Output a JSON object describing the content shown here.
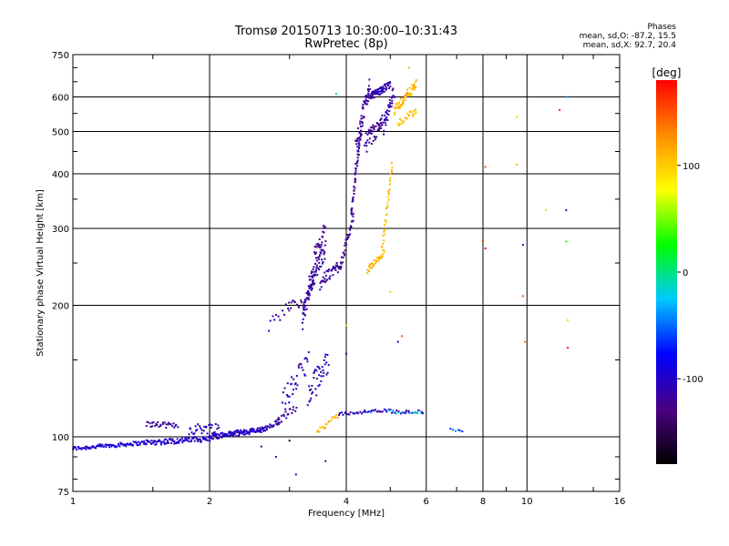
{
  "header": {
    "title_line1": "Tromsø 20150713 10:30:00–10:31:43",
    "title_line2": "RwPretec (8p)",
    "stats_heading": "Phases",
    "stats_o": "mean, sd,O: -87.2, 15.5",
    "stats_x": "mean, sd,X: 92.7, 20.4"
  },
  "chart_data": {
    "type": "scatter",
    "title": "Tromsø 20150713 10:30:00–10:31:43",
    "subtitle": "RwPretec (8p)",
    "xlabel": "Frequency [MHz]",
    "ylabel": "Stationary phase Virtual Height [km]",
    "xscale": "log",
    "yscale": "log",
    "xlim": [
      1,
      16
    ],
    "ylim": [
      75,
      750
    ],
    "xticks": [
      1,
      2,
      4,
      6,
      8,
      10,
      16
    ],
    "xtick_labels": [
      "1",
      "2",
      "4",
      "6",
      "8",
      "10",
      "16"
    ],
    "yticks": [
      75,
      100,
      200,
      300,
      400,
      500,
      600,
      750
    ],
    "ytick_labels": [
      "75",
      "100",
      "200",
      "300",
      "400",
      "500",
      "600",
      "750"
    ],
    "grid": true,
    "colorbar": {
      "label": "[deg]",
      "range": [
        -180,
        180
      ],
      "ticks": [
        100,
        0,
        -100
      ],
      "tick_labels": [
        "100",
        "0",
        "-100"
      ],
      "colormap": [
        "#000000",
        "#4b0082",
        "#0000ff",
        "#00c8ff",
        "#00ff00",
        "#ffff00",
        "#ff8c00",
        "#ff0000"
      ]
    },
    "segments": [
      {
        "x0": 1.0,
        "x1": 1.45,
        "y0": 94,
        "y1": 97,
        "n": 90,
        "jy": 1.0,
        "phase": -95,
        "jp": 10
      },
      {
        "x0": 1.45,
        "x1": 2.0,
        "y0": 97,
        "y1": 99,
        "n": 90,
        "jy": 1.5,
        "phase": -100,
        "jp": 15
      },
      {
        "x0": 1.45,
        "x1": 1.7,
        "y0": 107,
        "y1": 106,
        "n": 30,
        "jy": 1.5,
        "phase": -120,
        "jp": 10
      },
      {
        "x0": 1.8,
        "x1": 2.1,
        "y0": 104,
        "y1": 105,
        "n": 30,
        "jy": 3.0,
        "phase": -100,
        "jp": 15
      },
      {
        "x0": 2.0,
        "x1": 2.65,
        "y0": 100,
        "y1": 104,
        "n": 120,
        "jy": 1.5,
        "phase": -100,
        "jp": 15
      },
      {
        "x0": 2.65,
        "x1": 2.85,
        "y0": 104,
        "y1": 108,
        "n": 20,
        "jy": 2.0,
        "phase": -110,
        "jp": 10
      },
      {
        "x0": 2.8,
        "x1": 3.1,
        "y0": 108,
        "y1": 118,
        "n": 20,
        "jy": 3.0,
        "phase": -120,
        "jp": 15
      },
      {
        "x0": 2.7,
        "x1": 3.0,
        "y0": 180,
        "y1": 200,
        "n": 12,
        "jy": 6.0,
        "phase": -110,
        "jp": 20
      },
      {
        "x0": 3.0,
        "x1": 3.25,
        "y0": 200,
        "y1": 205,
        "n": 14,
        "jy": 5.0,
        "phase": -120,
        "jp": 15
      },
      {
        "x0": 2.9,
        "x1": 3.3,
        "y0": 120,
        "y1": 150,
        "n": 35,
        "jy": 8.0,
        "phase": -110,
        "jp": 25
      },
      {
        "x0": 3.2,
        "x1": 3.4,
        "y0": 185,
        "y1": 240,
        "n": 50,
        "jy": 10.0,
        "phase": -115,
        "jp": 15
      },
      {
        "x0": 3.3,
        "x1": 3.6,
        "y0": 220,
        "y1": 270,
        "n": 50,
        "jy": 12.0,
        "phase": -115,
        "jp": 15
      },
      {
        "x0": 3.4,
        "x1": 3.6,
        "y0": 260,
        "y1": 300,
        "n": 25,
        "jy": 10.0,
        "phase": -120,
        "jp": 10
      },
      {
        "x0": 3.3,
        "x1": 3.65,
        "y0": 125,
        "y1": 150,
        "n": 40,
        "jy": 10.0,
        "phase": -110,
        "jp": 25
      },
      {
        "x0": 3.5,
        "x1": 3.9,
        "y0": 225,
        "y1": 250,
        "n": 45,
        "jy": 8.0,
        "phase": -115,
        "jp": 15
      },
      {
        "x0": 3.9,
        "x1": 4.15,
        "y0": 250,
        "y1": 320,
        "n": 30,
        "jy": 6.0,
        "phase": -120,
        "jp": 10
      },
      {
        "x0": 4.1,
        "x1": 4.3,
        "y0": 320,
        "y1": 500,
        "n": 45,
        "jy": 10.0,
        "phase": -120,
        "jp": 10
      },
      {
        "x0": 4.2,
        "x1": 4.5,
        "y0": 450,
        "y1": 640,
        "n": 60,
        "jy": 30.0,
        "phase": -120,
        "jp": 10
      },
      {
        "x0": 4.4,
        "x1": 4.8,
        "y0": 470,
        "y1": 520,
        "n": 45,
        "jy": 25.0,
        "phase": -120,
        "jp": 10
      },
      {
        "x0": 4.5,
        "x1": 5.0,
        "y0": 600,
        "y1": 640,
        "n": 60,
        "jy": 12.0,
        "phase": -110,
        "jp": 15
      },
      {
        "x0": 4.8,
        "x1": 5.1,
        "y0": 500,
        "y1": 620,
        "n": 40,
        "jy": 20.0,
        "phase": -110,
        "jp": 15
      },
      {
        "x0": 3.45,
        "x1": 3.85,
        "y0": 103,
        "y1": 112,
        "n": 20,
        "jy": 1.5,
        "phase": 110,
        "jp": 15
      },
      {
        "x0": 3.85,
        "x1": 5.0,
        "y0": 113,
        "y1": 115,
        "n": 35,
        "jy": 1.0,
        "phase": -100,
        "jp": 40
      },
      {
        "x0": 5.0,
        "x1": 5.9,
        "y0": 114,
        "y1": 114,
        "n": 30,
        "jy": 1.0,
        "phase": -60,
        "jp": 60
      },
      {
        "x0": 4.45,
        "x1": 4.85,
        "y0": 240,
        "y1": 265,
        "n": 30,
        "jy": 4.0,
        "phase": 110,
        "jp": 10
      },
      {
        "x0": 4.8,
        "x1": 5.05,
        "y0": 265,
        "y1": 420,
        "n": 35,
        "jy": 10.0,
        "phase": 105,
        "jp": 10
      },
      {
        "x0": 5.1,
        "x1": 5.7,
        "y0": 560,
        "y1": 640,
        "n": 60,
        "jy": 15.0,
        "phase": 110,
        "jp": 15
      },
      {
        "x0": 5.2,
        "x1": 5.7,
        "y0": 520,
        "y1": 560,
        "n": 25,
        "jy": 10.0,
        "phase": 105,
        "jp": 10
      },
      {
        "x0": 6.8,
        "x1": 7.2,
        "y0": 104,
        "y1": 103,
        "n": 6,
        "jy": 0.5,
        "phase": -60,
        "jp": 20
      }
    ],
    "scatter": [
      {
        "x": 3.8,
        "y": 610,
        "phase": 0
      },
      {
        "x": 5.5,
        "y": 700,
        "phase": 110
      },
      {
        "x": 8.1,
        "y": 415,
        "phase": 150
      },
      {
        "x": 8.0,
        "y": 280,
        "phase": 160
      },
      {
        "x": 8.1,
        "y": 270,
        "phase": 170
      },
      {
        "x": 9.5,
        "y": 540,
        "phase": 100
      },
      {
        "x": 9.5,
        "y": 420,
        "phase": 110
      },
      {
        "x": 9.8,
        "y": 210,
        "phase": 150
      },
      {
        "x": 9.9,
        "y": 165,
        "phase": 140
      },
      {
        "x": 9.8,
        "y": 275,
        "phase": -100
      },
      {
        "x": 11.0,
        "y": 330,
        "phase": 60
      },
      {
        "x": 11.8,
        "y": 560,
        "phase": 170
      },
      {
        "x": 12.2,
        "y": 330,
        "phase": -110
      },
      {
        "x": 12.2,
        "y": 280,
        "phase": 20
      },
      {
        "x": 12.3,
        "y": 185,
        "phase": 100
      },
      {
        "x": 12.3,
        "y": 160,
        "phase": 170
      },
      {
        "x": 12.3,
        "y": 600,
        "phase": -40
      },
      {
        "x": 4.0,
        "y": 180,
        "phase": 100
      },
      {
        "x": 4.0,
        "y": 155,
        "phase": -110
      },
      {
        "x": 5.2,
        "y": 165,
        "phase": -110
      },
      {
        "x": 5.0,
        "y": 215,
        "phase": 60
      },
      {
        "x": 5.3,
        "y": 170,
        "phase": 150
      },
      {
        "x": 3.1,
        "y": 82,
        "phase": -110
      },
      {
        "x": 3.6,
        "y": 88,
        "phase": -110
      },
      {
        "x": 2.6,
        "y": 95,
        "phase": -110
      },
      {
        "x": 2.8,
        "y": 90,
        "phase": -110
      },
      {
        "x": 3.0,
        "y": 98,
        "phase": -170
      }
    ]
  }
}
